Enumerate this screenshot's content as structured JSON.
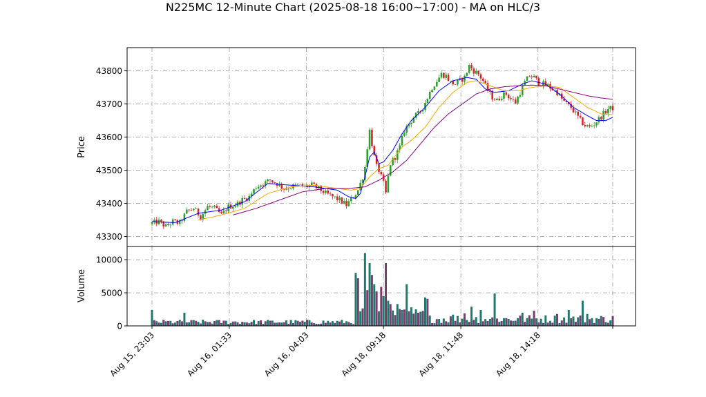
{
  "chart_data": {
    "type": "candlestick",
    "title": "N225MC 12-Minute Chart (2025-08-18 16:00~17:00) - MA on HLC/3",
    "price_panel": {
      "ylabel": "Price",
      "ylim": [
        43270,
        43870
      ],
      "yticks": [
        43300,
        43400,
        43500,
        43600,
        43700,
        43800
      ],
      "up_color": "#2ca02c",
      "down_color": "#d62728",
      "close_path": [
        [
          0,
          43340
        ],
        [
          3,
          43345
        ],
        [
          6,
          43330
        ],
        [
          9,
          43345
        ],
        [
          12,
          43340
        ],
        [
          15,
          43375
        ],
        [
          18,
          43385
        ],
        [
          21,
          43360
        ],
        [
          24,
          43390
        ],
        [
          27,
          43385
        ],
        [
          30,
          43365
        ],
        [
          33,
          43390
        ],
        [
          36,
          43395
        ],
        [
          39,
          43410
        ],
        [
          42,
          43420
        ],
        [
          45,
          43450
        ],
        [
          48,
          43460
        ],
        [
          51,
          43470
        ],
        [
          54,
          43460
        ],
        [
          57,
          43445
        ],
        [
          60,
          43450
        ],
        [
          63,
          43455
        ],
        [
          66,
          43450
        ],
        [
          69,
          43455
        ],
        [
          72,
          43445
        ],
        [
          75,
          43430
        ],
        [
          78,
          43420
        ],
        [
          81,
          43410
        ],
        [
          84,
          43395
        ],
        [
          87,
          43420
        ],
        [
          88,
          43430
        ],
        [
          89,
          43440
        ],
        [
          90,
          43460
        ],
        [
          91,
          43480
        ],
        [
          92,
          43510
        ],
        [
          93,
          43570
        ],
        [
          94,
          43620
        ],
        [
          95,
          43580
        ],
        [
          96,
          43540
        ],
        [
          97,
          43510
        ],
        [
          98,
          43500
        ],
        [
          99,
          43480
        ],
        [
          100,
          43460
        ],
        [
          101,
          43430
        ],
        [
          102,
          43480
        ],
        [
          103,
          43520
        ],
        [
          105,
          43540
        ],
        [
          107,
          43570
        ],
        [
          109,
          43620
        ],
        [
          111,
          43640
        ],
        [
          113,
          43660
        ],
        [
          115,
          43670
        ],
        [
          117,
          43690
        ],
        [
          119,
          43720
        ],
        [
          121,
          43750
        ],
        [
          123,
          43770
        ],
        [
          125,
          43790
        ],
        [
          127,
          43785
        ],
        [
          129,
          43765
        ],
        [
          131,
          43760
        ],
        [
          133,
          43770
        ],
        [
          135,
          43780
        ],
        [
          137,
          43815
        ],
        [
          139,
          43800
        ],
        [
          141,
          43790
        ],
        [
          143,
          43770
        ],
        [
          145,
          43740
        ],
        [
          147,
          43720
        ],
        [
          149,
          43710
        ],
        [
          151,
          43725
        ],
        [
          153,
          43730
        ],
        [
          155,
          43715
        ],
        [
          157,
          43705
        ],
        [
          159,
          43735
        ],
        [
          161,
          43765
        ],
        [
          163,
          43785
        ],
        [
          165,
          43780
        ],
        [
          167,
          43765
        ],
        [
          169,
          43760
        ],
        [
          171,
          43755
        ],
        [
          173,
          43745
        ],
        [
          175,
          43735
        ],
        [
          177,
          43715
        ],
        [
          179,
          43700
        ],
        [
          181,
          43690
        ],
        [
          183,
          43670
        ],
        [
          185,
          43650
        ],
        [
          187,
          43635
        ],
        [
          189,
          43630
        ],
        [
          191,
          43640
        ],
        [
          193,
          43655
        ],
        [
          195,
          43670
        ],
        [
          197,
          43685
        ],
        [
          199,
          43688
        ]
      ],
      "ma_lines": [
        {
          "color": "#0000ff",
          "points": [
            [
              0,
              43345
            ],
            [
              10,
              43342
            ],
            [
              20,
              43370
            ],
            [
              30,
              43380
            ],
            [
              40,
              43405
            ],
            [
              50,
              43460
            ],
            [
              60,
              43455
            ],
            [
              70,
              43450
            ],
            [
              80,
              43440
            ],
            [
              85,
              43420
            ],
            [
              88,
              43415
            ],
            [
              90,
              43430
            ],
            [
              92,
              43480
            ],
            [
              94,
              43540
            ],
            [
              96,
              43555
            ],
            [
              98,
              43520
            ],
            [
              100,
              43525
            ],
            [
              104,
              43560
            ],
            [
              108,
              43610
            ],
            [
              112,
              43650
            ],
            [
              118,
              43690
            ],
            [
              124,
              43740
            ],
            [
              130,
              43770
            ],
            [
              136,
              43780
            ],
            [
              140,
              43775
            ],
            [
              144,
              43745
            ],
            [
              148,
              43735
            ],
            [
              154,
              43740
            ],
            [
              160,
              43760
            ],
            [
              164,
              43770
            ],
            [
              170,
              43760
            ],
            [
              176,
              43730
            ],
            [
              182,
              43690
            ],
            [
              188,
              43665
            ],
            [
              192,
              43650
            ],
            [
              196,
              43650
            ],
            [
              199,
              43660
            ]
          ]
        },
        {
          "color": "#ffa500",
          "points": [
            [
              20,
              43350
            ],
            [
              30,
              43365
            ],
            [
              40,
              43385
            ],
            [
              50,
              43430
            ],
            [
              60,
              43450
            ],
            [
              70,
              43455
            ],
            [
              80,
              43445
            ],
            [
              86,
              43440
            ],
            [
              90,
              43445
            ],
            [
              94,
              43480
            ],
            [
              98,
              43505
            ],
            [
              102,
              43515
            ],
            [
              108,
              43570
            ],
            [
              112,
              43590
            ],
            [
              118,
              43630
            ],
            [
              124,
              43690
            ],
            [
              130,
              43735
            ],
            [
              136,
              43765
            ],
            [
              140,
              43770
            ],
            [
              146,
              43755
            ],
            [
              152,
              43740
            ],
            [
              158,
              43740
            ],
            [
              164,
              43750
            ],
            [
              170,
              43755
            ],
            [
              176,
              43750
            ],
            [
              182,
              43720
            ],
            [
              188,
              43690
            ],
            [
              194,
              43670
            ],
            [
              199,
              43668
            ]
          ]
        },
        {
          "color": "#800080",
          "points": [
            [
              35,
              43365
            ],
            [
              45,
              43385
            ],
            [
              55,
              43410
            ],
            [
              65,
              43435
            ],
            [
              75,
              43445
            ],
            [
              85,
              43445
            ],
            [
              92,
              43450
            ],
            [
              98,
              43470
            ],
            [
              104,
              43495
            ],
            [
              110,
              43530
            ],
            [
              116,
              43580
            ],
            [
              122,
              43630
            ],
            [
              128,
              43670
            ],
            [
              134,
              43700
            ],
            [
              140,
              43730
            ],
            [
              146,
              43745
            ],
            [
              152,
              43752
            ],
            [
              158,
              43755
            ],
            [
              164,
              43757
            ],
            [
              170,
              43755
            ],
            [
              176,
              43745
            ],
            [
              182,
              43735
            ],
            [
              188,
              43725
            ],
            [
              194,
              43718
            ],
            [
              199,
              43714
            ]
          ]
        }
      ]
    },
    "volume_panel": {
      "ylabel": "Volume",
      "ylim": [
        0,
        12000
      ],
      "yticks": [
        0,
        5000,
        10000
      ],
      "bar_colors": [
        "#1f7a6e",
        "#7a3e6e"
      ],
      "spikes": [
        {
          "i": 0,
          "v": 2400
        },
        {
          "i": 14,
          "v": 2000
        },
        {
          "i": 88,
          "v": 8000
        },
        {
          "i": 89,
          "v": 7200
        },
        {
          "i": 90,
          "v": 2200
        },
        {
          "i": 92,
          "v": 11000
        },
        {
          "i": 93,
          "v": 5400
        },
        {
          "i": 94,
          "v": 9500
        },
        {
          "i": 95,
          "v": 7700
        },
        {
          "i": 96,
          "v": 6300
        },
        {
          "i": 97,
          "v": 5200
        },
        {
          "i": 99,
          "v": 5900
        },
        {
          "i": 100,
          "v": 4500
        },
        {
          "i": 101,
          "v": 9500
        },
        {
          "i": 102,
          "v": 3800
        },
        {
          "i": 103,
          "v": 3300
        },
        {
          "i": 106,
          "v": 3300
        },
        {
          "i": 110,
          "v": 6300
        },
        {
          "i": 112,
          "v": 2800
        },
        {
          "i": 115,
          "v": 2000
        },
        {
          "i": 118,
          "v": 4300
        },
        {
          "i": 119,
          "v": 4100
        },
        {
          "i": 130,
          "v": 1700
        },
        {
          "i": 135,
          "v": 1900
        },
        {
          "i": 138,
          "v": 2900
        },
        {
          "i": 142,
          "v": 2400
        },
        {
          "i": 148,
          "v": 4900
        },
        {
          "i": 160,
          "v": 2000
        },
        {
          "i": 165,
          "v": 2300
        },
        {
          "i": 175,
          "v": 1800
        },
        {
          "i": 180,
          "v": 2400
        },
        {
          "i": 186,
          "v": 3800
        },
        {
          "i": 188,
          "v": 1800
        }
      ]
    },
    "x_axis": {
      "n_bars": 200,
      "tick_labels": [
        "Aug 15, 23:03",
        "Aug 16, 01:33",
        "Aug 16, 04:03",
        "Aug 18, 09:18",
        "Aug 18, 11:48",
        "Aug 18, 14:18"
      ],
      "tick_positions": [
        0,
        33.4,
        66.7,
        100,
        133.4,
        166.7
      ]
    },
    "grid": true
  }
}
